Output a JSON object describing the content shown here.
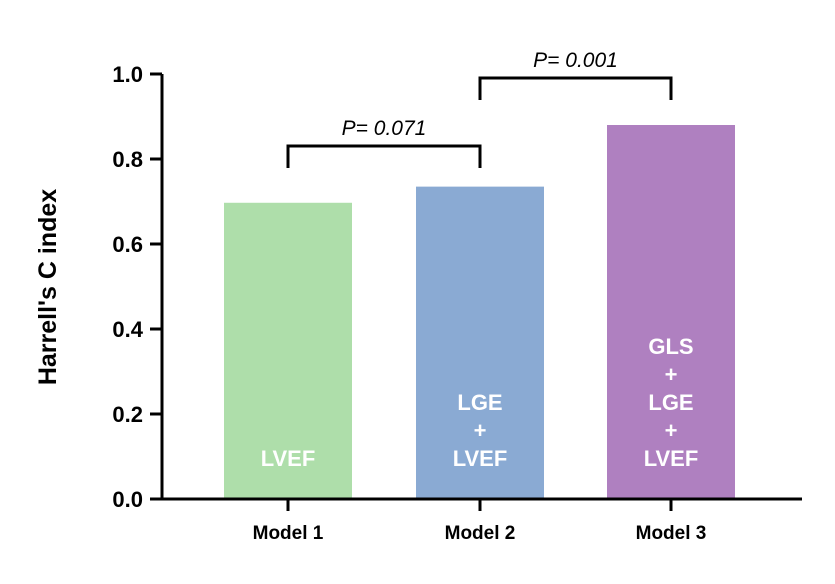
{
  "chart_data": {
    "type": "bar",
    "title": "",
    "xlabel": "",
    "ylabel": "Harrell's C index",
    "ylim": [
      0,
      1.0
    ],
    "yticks": [
      "0.0",
      "0.2",
      "0.4",
      "0.6",
      "0.8",
      "1.0"
    ],
    "categories": [
      "Model 1",
      "Model 2",
      "Model 3"
    ],
    "values": [
      0.697,
      0.735,
      0.88
    ],
    "colors": [
      "#aedeaa",
      "#8aaad3",
      "#af80c0"
    ],
    "bar_labels": [
      [
        "LVEF"
      ],
      [
        "LGE",
        "+",
        "LVEF"
      ],
      [
        "GLS",
        "+",
        "LGE",
        "+",
        "LVEF"
      ]
    ],
    "comparisons": [
      {
        "from": 0,
        "to": 1,
        "label": "P= 0.071",
        "level": 0.84
      },
      {
        "from": 1,
        "to": 2,
        "label": "P= 0.001",
        "level": 1.0
      }
    ]
  }
}
